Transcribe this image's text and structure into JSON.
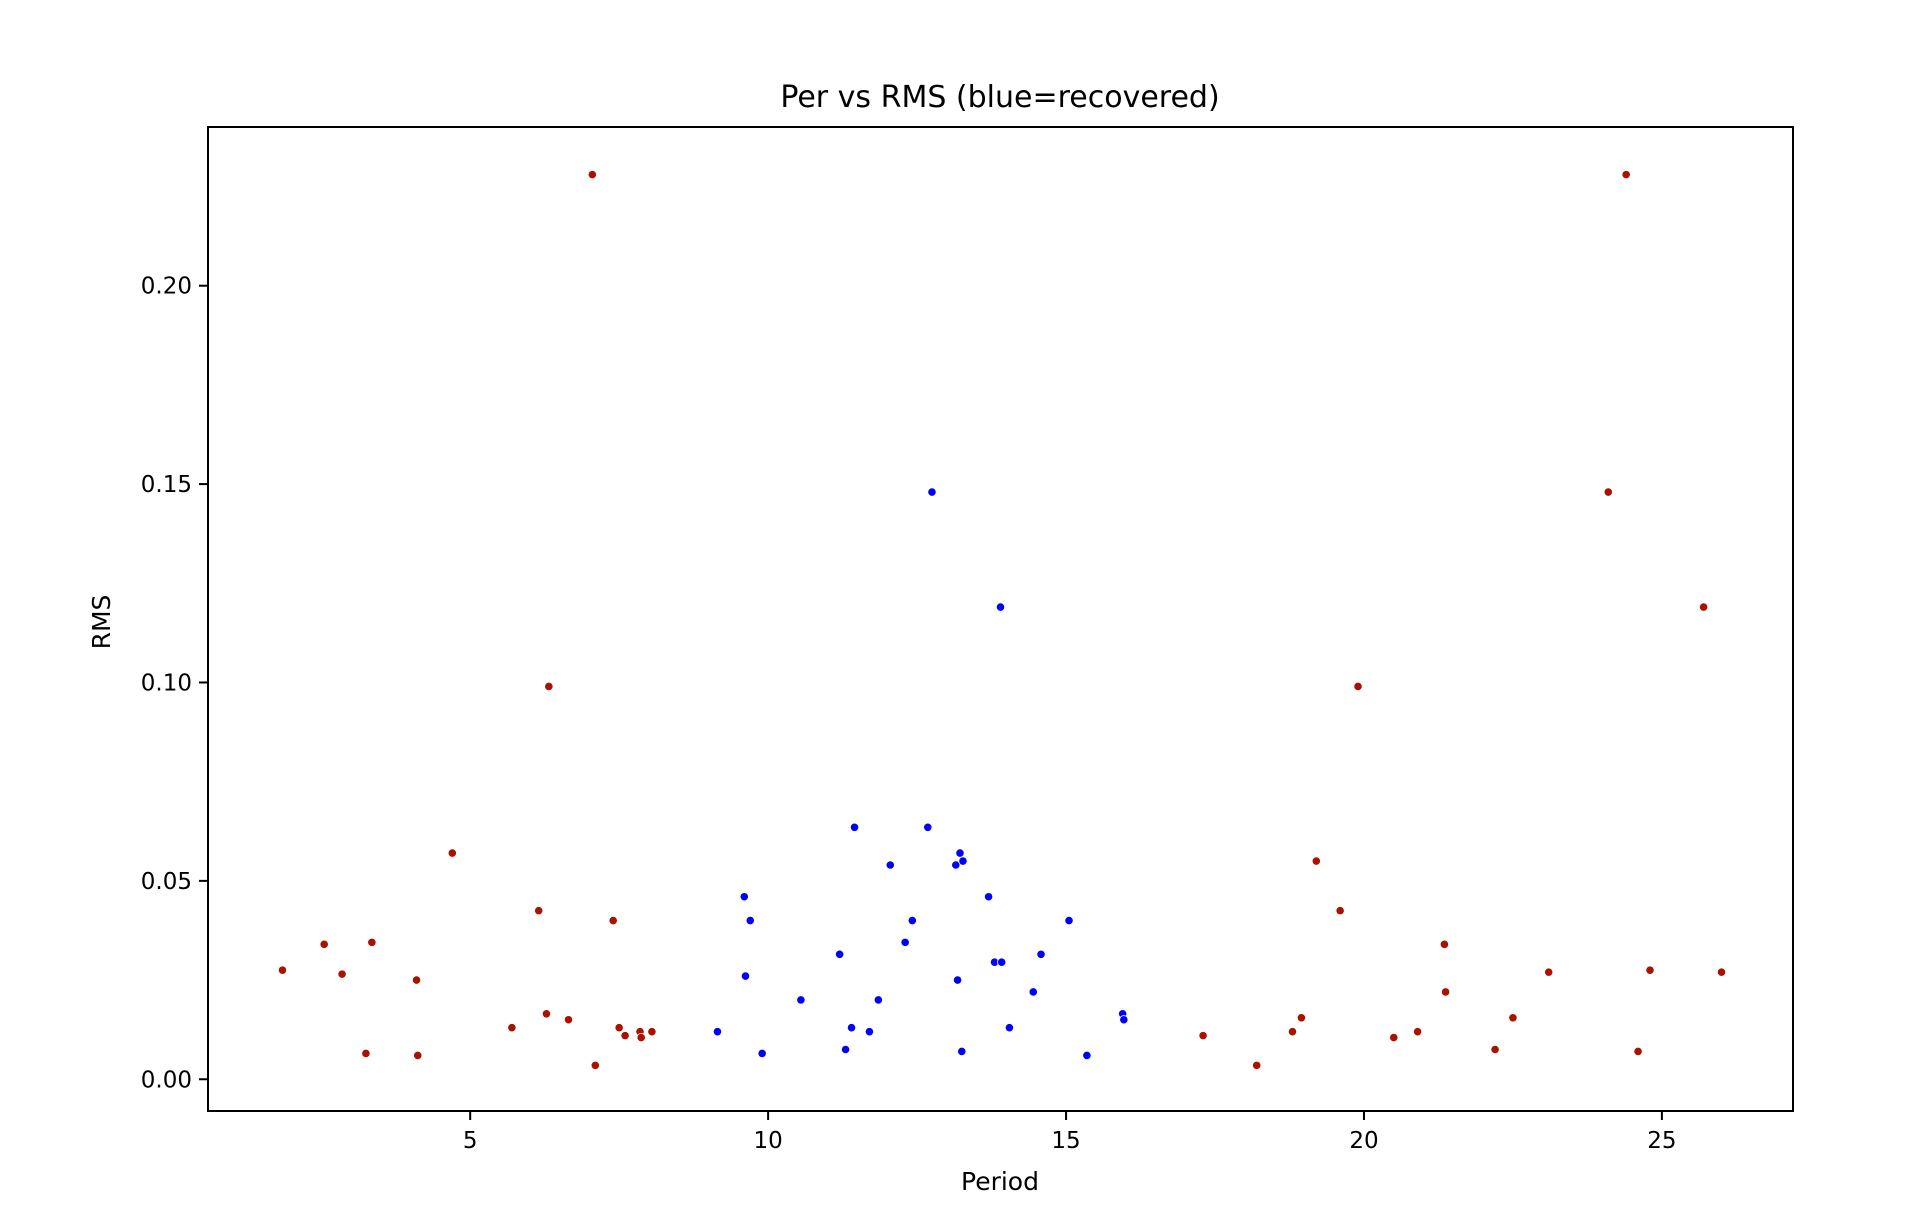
{
  "chart_data": {
    "type": "scatter",
    "title": "Per vs RMS (blue=recovered)",
    "xlabel": "Period",
    "ylabel": "RMS",
    "xlim": [
      0.6,
      27.2
    ],
    "ylim": [
      -0.008,
      0.24
    ],
    "xticks": [
      5,
      10,
      15,
      20,
      25
    ],
    "xtick_labels": [
      "5",
      "10",
      "15",
      "20",
      "25"
    ],
    "yticks": [
      0.0,
      0.05,
      0.1,
      0.15,
      0.2
    ],
    "ytick_labels": [
      "0.00",
      "0.05",
      "0.10",
      "0.15",
      "0.20"
    ],
    "grid": false,
    "series": [
      {
        "color": "#0000ff",
        "points": [
          [
            9.15,
            0.012
          ],
          [
            9.6,
            0.046
          ],
          [
            9.62,
            0.026
          ],
          [
            9.7,
            0.04
          ],
          [
            9.9,
            0.0065
          ],
          [
            10.55,
            0.02
          ],
          [
            11.2,
            0.0315
          ],
          [
            11.3,
            0.0075
          ],
          [
            11.4,
            0.013
          ],
          [
            11.45,
            0.0635
          ],
          [
            11.7,
            0.012
          ],
          [
            11.85,
            0.02
          ],
          [
            12.05,
            0.054
          ],
          [
            12.3,
            0.0345
          ],
          [
            12.42,
            0.04
          ],
          [
            12.68,
            0.0635
          ],
          [
            12.75,
            0.148
          ],
          [
            13.15,
            0.054
          ],
          [
            13.18,
            0.025
          ],
          [
            13.22,
            0.057
          ],
          [
            13.25,
            0.007
          ],
          [
            13.27,
            0.055
          ],
          [
            13.7,
            0.046
          ],
          [
            13.8,
            0.0295
          ],
          [
            13.9,
            0.119
          ],
          [
            13.92,
            0.0295
          ],
          [
            14.05,
            0.013
          ],
          [
            14.45,
            0.022
          ],
          [
            14.58,
            0.0315
          ],
          [
            15.05,
            0.04
          ],
          [
            15.35,
            0.006
          ],
          [
            15.95,
            0.0165
          ],
          [
            15.97,
            0.015
          ]
        ]
      },
      {
        "color": "#aa1100",
        "points": [
          [
            1.85,
            0.0275
          ],
          [
            2.55,
            0.034
          ],
          [
            2.85,
            0.0265
          ],
          [
            3.25,
            0.0065
          ],
          [
            3.35,
            0.0345
          ],
          [
            4.1,
            0.025
          ],
          [
            4.12,
            0.006
          ],
          [
            4.7,
            0.057
          ],
          [
            5.7,
            0.013
          ],
          [
            6.15,
            0.0425
          ],
          [
            6.28,
            0.0165
          ],
          [
            6.32,
            0.099
          ],
          [
            6.65,
            0.015
          ],
          [
            7.05,
            0.228
          ],
          [
            7.1,
            0.0035
          ],
          [
            7.4,
            0.04
          ],
          [
            7.5,
            0.013
          ],
          [
            7.6,
            0.011
          ],
          [
            7.85,
            0.012
          ],
          [
            7.87,
            0.0105
          ],
          [
            8.05,
            0.012
          ],
          [
            17.3,
            0.011
          ],
          [
            18.2,
            0.0035
          ],
          [
            18.8,
            0.012
          ],
          [
            18.95,
            0.0155
          ],
          [
            19.2,
            0.055
          ],
          [
            19.6,
            0.0425
          ],
          [
            19.9,
            0.099
          ],
          [
            20.5,
            0.0105
          ],
          [
            20.9,
            0.012
          ],
          [
            21.35,
            0.034
          ],
          [
            21.37,
            0.022
          ],
          [
            22.2,
            0.0075
          ],
          [
            22.5,
            0.0155
          ],
          [
            23.1,
            0.027
          ],
          [
            24.1,
            0.148
          ],
          [
            24.4,
            0.228
          ],
          [
            24.6,
            0.007
          ],
          [
            24.8,
            0.0275
          ],
          [
            25.7,
            0.119
          ],
          [
            26.0,
            0.027
          ]
        ]
      }
    ]
  }
}
